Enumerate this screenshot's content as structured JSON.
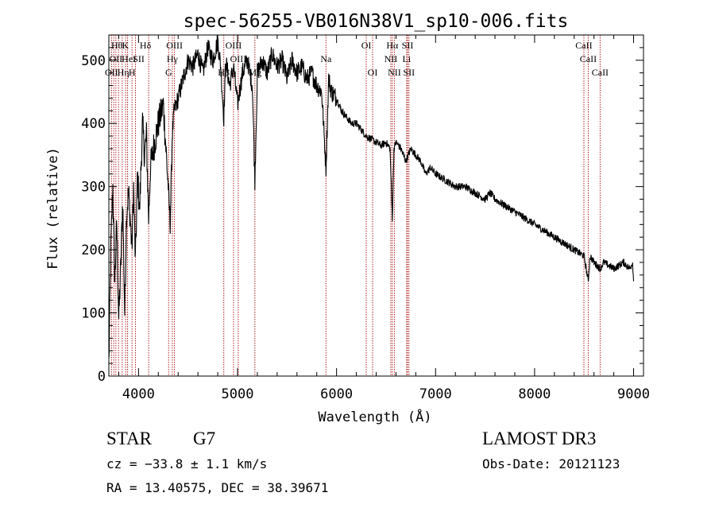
{
  "chart_data": {
    "type": "line",
    "title": "spec-56255-VB016N38V1_sp10-006.fits",
    "xlabel": "Wavelength (Å)",
    "ylabel": "Flux (relative)",
    "xlim": [
      3700,
      9100
    ],
    "ylim": [
      0,
      540
    ],
    "x_ticks": [
      4000,
      5000,
      6000,
      7000,
      8000,
      9000
    ],
    "x_tick_labels": [
      "4000",
      "5000",
      "6000",
      "7000",
      "8000",
      "9000"
    ],
    "y_ticks": [
      0,
      100,
      200,
      300,
      400,
      500
    ],
    "y_tick_labels": [
      "0",
      "100",
      "200",
      "300",
      "400",
      "500"
    ],
    "line_color": "#000000",
    "marker_color": "#b22222",
    "spectrum": {
      "x": [
        3700,
        3720,
        3740,
        3760,
        3780,
        3800,
        3820,
        3840,
        3860,
        3880,
        3900,
        3920,
        3933,
        3950,
        3968,
        3990,
        4010,
        4040,
        4060,
        4080,
        4102,
        4120,
        4150,
        4200,
        4250,
        4300,
        4320,
        4340,
        4360,
        4400,
        4450,
        4500,
        4550,
        4600,
        4650,
        4700,
        4750,
        4800,
        4830,
        4861,
        4880,
        4920,
        4960,
        5000,
        5050,
        5100,
        5150,
        5175,
        5200,
        5250,
        5300,
        5350,
        5400,
        5450,
        5500,
        5550,
        5600,
        5650,
        5700,
        5750,
        5800,
        5850,
        5893,
        5920,
        5950,
        6000,
        6050,
        6100,
        6150,
        6200,
        6250,
        6300,
        6350,
        6400,
        6450,
        6500,
        6540,
        6563,
        6580,
        6600,
        6650,
        6700,
        6750,
        6800,
        6850,
        6900,
        6950,
        7000,
        7100,
        7200,
        7300,
        7400,
        7500,
        7550,
        7600,
        7700,
        7800,
        7900,
        8000,
        8100,
        8200,
        8300,
        8400,
        8500,
        8542,
        8560,
        8600,
        8662,
        8700,
        8800,
        8900,
        8960,
        8990,
        9000
      ],
      "y": [
        20,
        200,
        300,
        150,
        240,
        90,
        170,
        280,
        100,
        260,
        290,
        240,
        200,
        300,
        180,
        320,
        260,
        400,
        350,
        380,
        250,
        330,
        360,
        400,
        430,
        300,
        240,
        380,
        420,
        440,
        470,
        500,
        490,
        510,
        480,
        520,
        500,
        530,
        490,
        410,
        500,
        460,
        490,
        430,
        480,
        500,
        460,
        310,
        480,
        500,
        480,
        510,
        490,
        500,
        470,
        500,
        480,
        490,
        470,
        480,
        460,
        450,
        330,
        470,
        450,
        440,
        420,
        410,
        400,
        400,
        390,
        380,
        375,
        370,
        365,
        370,
        360,
        250,
        360,
        370,
        360,
        340,
        360,
        350,
        340,
        320,
        330,
        320,
        310,
        300,
        300,
        290,
        280,
        290,
        280,
        270,
        260,
        250,
        240,
        230,
        220,
        210,
        200,
        190,
        150,
        190,
        180,
        170,
        180,
        170,
        180,
        170,
        180,
        150
      ]
    },
    "lines": [
      {
        "wl": 3727,
        "label": "OII",
        "row": 2,
        "dx": 0
      },
      {
        "wl": 3750,
        "label": "Hθ",
        "row": 0,
        "dx": 4
      },
      {
        "wl": 3771,
        "label": "OII",
        "row": 1,
        "dx": 0
      },
      {
        "wl": 3798,
        "label": "Hη",
        "row": 2,
        "dx": 6
      },
      {
        "wl": 3835,
        "label": "K",
        "row": 0,
        "dx": 4
      },
      {
        "wl": 3870,
        "label": "HeI",
        "row": 1,
        "dx": 4
      },
      {
        "wl": 3889,
        "label": "",
        "row": 0,
        "dx": 0
      },
      {
        "wl": 3934,
        "label": "H",
        "row": 2,
        "dx": 0
      },
      {
        "wl": 3969,
        "label": "SII",
        "row": 1,
        "dx": 4
      },
      {
        "wl": 4102,
        "label": "Hδ",
        "row": 0,
        "dx": -4
      },
      {
        "wl": 4304,
        "label": "G",
        "row": 2,
        "dx": 0
      },
      {
        "wl": 4341,
        "label": "Hγ",
        "row": 1,
        "dx": 0
      },
      {
        "wl": 4363,
        "label": "OIII",
        "row": 0,
        "dx": 0
      },
      {
        "wl": 4861,
        "label": "Hβ",
        "row": 2,
        "dx": 0
      },
      {
        "wl": 4959,
        "label": "OIII",
        "row": 0,
        "dx": 0
      },
      {
        "wl": 5007,
        "label": "OIII",
        "row": 1,
        "dx": 0
      },
      {
        "wl": 5175,
        "label": "Mg",
        "row": 2,
        "dx": 0
      },
      {
        "wl": 5893,
        "label": "Na",
        "row": 1,
        "dx": 0
      },
      {
        "wl": 6300,
        "label": "OI",
        "row": 0,
        "dx": 0
      },
      {
        "wl": 6364,
        "label": "OI",
        "row": 2,
        "dx": 0
      },
      {
        "wl": 6548,
        "label": "NII",
        "row": 1,
        "dx": 0
      },
      {
        "wl": 6563,
        "label": "Hα",
        "row": 0,
        "dx": 0
      },
      {
        "wl": 6584,
        "label": "NII",
        "row": 2,
        "dx": 0
      },
      {
        "wl": 6708,
        "label": "Li",
        "row": 1,
        "dx": 0
      },
      {
        "wl": 6717,
        "label": "SII",
        "row": 0,
        "dx": 0
      },
      {
        "wl": 6731,
        "label": "SII",
        "row": 2,
        "dx": 0
      },
      {
        "wl": 8498,
        "label": "CaII",
        "row": 0,
        "dx": 0
      },
      {
        "wl": 8542,
        "label": "CaII",
        "row": 1,
        "dx": 0
      },
      {
        "wl": 8662,
        "label": "CaII",
        "row": 2,
        "dx": 0
      }
    ]
  },
  "info": {
    "class_label": "STAR",
    "subclass_label": "G7",
    "cz_text": "cz = −33.8 ± 1.1 km/s",
    "radec_text": "RA =  13.40575, DEC =  38.39671",
    "survey_label": "LAMOST DR3",
    "obs_date_text": "Obs-Date: 20121123"
  }
}
